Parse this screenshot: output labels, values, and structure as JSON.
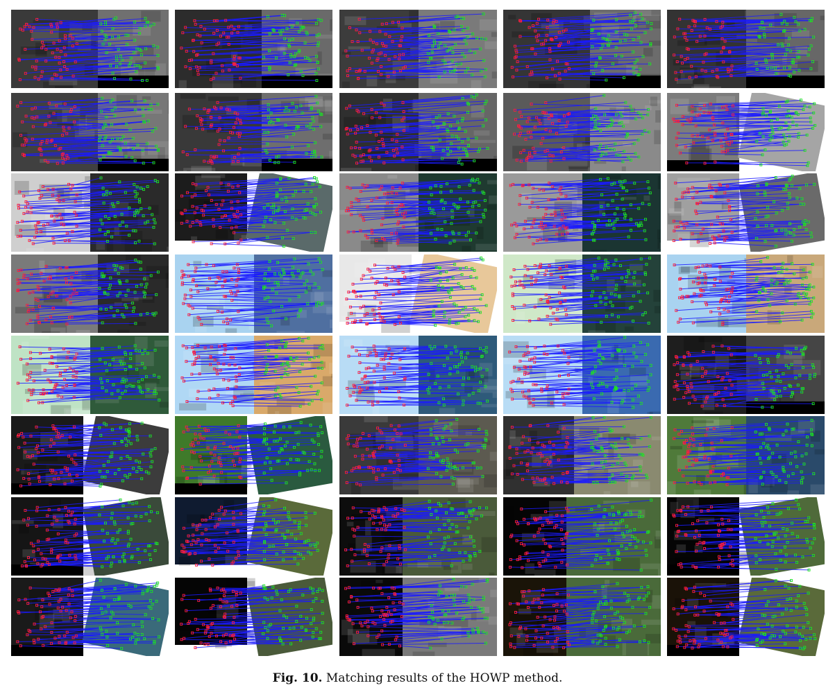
{
  "figure": {
    "caption_label": "Fig. 10.",
    "caption_text": "Matching results of the HOWP method.",
    "rows": 8,
    "cols": 5,
    "colors": {
      "match_line": "#1a1aff",
      "ref_point": "#ff1e3c",
      "sensed_point": "#1ee61e",
      "background": "#ffffff"
    },
    "panels": [
      {
        "style": "urban-gray",
        "bg": "#3a3a3a",
        "bg2": "#707070",
        "rot": false,
        "blackbar": true,
        "sep": 0.55
      },
      {
        "style": "urban-gray",
        "bg": "#2c2c2c",
        "bg2": "#6a6a6a",
        "rot": false,
        "blackbar": true,
        "sep": 0.55
      },
      {
        "style": "urban-gray",
        "bg": "#3c3c3c",
        "bg2": "#7a7a7a",
        "rot": false,
        "blackbar": false,
        "sep": 0.5
      },
      {
        "style": "urban-gray",
        "bg": "#353535",
        "bg2": "#6c6c6c",
        "rot": false,
        "blackbar": true,
        "sep": 0.55
      },
      {
        "style": "urban-gray",
        "bg": "#333333",
        "bg2": "#676767",
        "rot": false,
        "blackbar": true,
        "sep": 0.5
      },
      {
        "style": "urban-gray",
        "bg": "#404040",
        "bg2": "#777777",
        "rot": false,
        "blackbar": true,
        "sep": 0.55
      },
      {
        "style": "urban-gray",
        "bg": "#393939",
        "bg2": "#6e6e6e",
        "rot": false,
        "blackbar": true,
        "sep": 0.55
      },
      {
        "style": "urban-gray",
        "bg": "#2f2f2f",
        "bg2": "#666666",
        "rot": false,
        "blackbar": true,
        "sep": 0.5
      },
      {
        "style": "sar",
        "bg": "#5a5a5a",
        "bg2": "#8a8a8a",
        "rot": false,
        "blackbar": false,
        "sep": 0.55
      },
      {
        "style": "sar",
        "bg": "#7c7c7c",
        "bg2": "#a5a5a5",
        "rot": true,
        "blackbar": true,
        "sep": 0.45
      },
      {
        "style": "river-bw",
        "bg": "#cfcfcf",
        "bg2": "#2a2a2a",
        "rot": false,
        "blackbar": false,
        "sep": 0.5
      },
      {
        "style": "river-bw",
        "bg": "#1c1c1c",
        "bg2": "#5a6a6a",
        "rot": true,
        "blackbar": false,
        "sep": 0.5
      },
      {
        "style": "forest",
        "bg": "#8a8a8a",
        "bg2": "#1f3a30",
        "rot": false,
        "blackbar": false,
        "sep": 0.5
      },
      {
        "style": "forest",
        "bg": "#9a9a9a",
        "bg2": "#1b3532",
        "rot": false,
        "blackbar": false,
        "sep": 0.5
      },
      {
        "style": "sar",
        "bg": "#a0a0a0",
        "bg2": "#6a6a6a",
        "rot": true,
        "blackbar": false,
        "sep": 0.5
      },
      {
        "style": "coast-gray",
        "bg": "#7a7a7a",
        "bg2": "#2a2a2a",
        "rot": false,
        "blackbar": false,
        "sep": 0.55
      },
      {
        "style": "map-blue",
        "bg": "#a9d3f0",
        "bg2": "#4f6fa0",
        "rot": false,
        "blackbar": false,
        "sep": 0.5
      },
      {
        "style": "map-sand",
        "bg": "#e8e8e8",
        "bg2": "#e8c89a",
        "rot": true,
        "blackbar": false,
        "sep": 0.5
      },
      {
        "style": "map-green",
        "bg": "#cfe8c8",
        "bg2": "#24423a",
        "rot": false,
        "blackbar": false,
        "sep": 0.5
      },
      {
        "style": "map-coast",
        "bg": "#a9d3f0",
        "bg2": "#c9a87a",
        "rot": false,
        "blackbar": false,
        "sep": 0.5
      },
      {
        "style": "map-green",
        "bg": "#bfe3c5",
        "bg2": "#2f5a3a",
        "rot": false,
        "blackbar": false,
        "sep": 0.5
      },
      {
        "style": "map-coast",
        "bg": "#b0d8f5",
        "bg2": "#d9a96a",
        "rot": false,
        "blackbar": false,
        "sep": 0.5
      },
      {
        "style": "map-blue",
        "bg": "#b8dcf5",
        "bg2": "#2e5a7a",
        "rot": false,
        "blackbar": false,
        "sep": 0.5
      },
      {
        "style": "map-blue",
        "bg": "#b8dcf5",
        "bg2": "#3a6ab0",
        "rot": false,
        "blackbar": false,
        "sep": 0.5
      },
      {
        "style": "urban-gray",
        "bg": "#1e1e1e",
        "bg2": "#454545",
        "rot": false,
        "blackbar": true,
        "sep": 0.5
      },
      {
        "style": "urban-gray",
        "bg": "#1a1a1a",
        "bg2": "#3c3c3c",
        "rot": true,
        "blackbar": true,
        "sep": 0.45
      },
      {
        "style": "vegetation",
        "bg": "#3f7a2a",
        "bg2": "#2a5a3f",
        "rot": true,
        "blackbar": true,
        "sep": 0.45
      },
      {
        "style": "urban-gray",
        "bg": "#3a3a3a",
        "bg2": "#5c5a50",
        "rot": false,
        "blackbar": false,
        "sep": 0.5
      },
      {
        "style": "urban-gray",
        "bg": "#303030",
        "bg2": "#8a8a70",
        "rot": false,
        "blackbar": false,
        "sep": 0.45
      },
      {
        "style": "vegetation",
        "bg": "#4f7a3a",
        "bg2": "#2a4a6a",
        "rot": false,
        "blackbar": false,
        "sep": 0.5
      },
      {
        "style": "urban-gray",
        "bg": "#151515",
        "bg2": "#3a4a3a",
        "rot": true,
        "blackbar": true,
        "sep": 0.45
      },
      {
        "style": "night",
        "bg": "#0f1b30",
        "bg2": "#5a6a3a",
        "rot": true,
        "blackbar": false,
        "sep": 0.45
      },
      {
        "style": "night",
        "bg": "#0d0d0d",
        "bg2": "#4a5a3a",
        "rot": false,
        "blackbar": false,
        "sep": 0.4
      },
      {
        "style": "night",
        "bg": "#050505",
        "bg2": "#4a6a3a",
        "rot": false,
        "blackbar": false,
        "sep": 0.4
      },
      {
        "style": "night",
        "bg": "#050505",
        "bg2": "#4f6a3a",
        "rot": true,
        "blackbar": true,
        "sep": 0.45
      },
      {
        "style": "night",
        "bg": "#1a1a1a",
        "bg2": "#3a6a7a",
        "rot": true,
        "blackbar": true,
        "sep": 0.45
      },
      {
        "style": "night",
        "bg": "#050505",
        "bg2": "#4a5a3a",
        "rot": true,
        "blackbar": false,
        "sep": 0.45
      },
      {
        "style": "night",
        "bg": "#0a0a0a",
        "bg2": "#7a7a7a",
        "rot": false,
        "blackbar": false,
        "sep": 0.4
      },
      {
        "style": "night",
        "bg": "#1a1408",
        "bg2": "#4a6a3a",
        "rot": false,
        "blackbar": false,
        "sep": 0.4
      },
      {
        "style": "night",
        "bg": "#1a1208",
        "bg2": "#5a6a3a",
        "rot": true,
        "blackbar": true,
        "sep": 0.45
      }
    ]
  }
}
